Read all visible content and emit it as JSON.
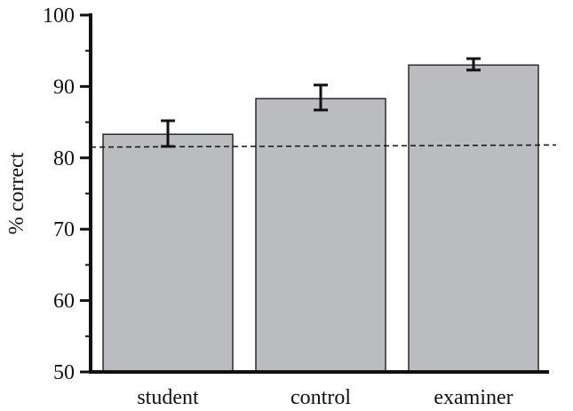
{
  "chart_data": {
    "type": "bar",
    "title": "",
    "xlabel": "",
    "ylabel": "% correct",
    "ylim": [
      50,
      100
    ],
    "yticks": [
      50,
      60,
      70,
      80,
      90,
      100
    ],
    "yticks_minor": [
      55,
      65,
      75,
      85,
      95
    ],
    "categories": [
      "student",
      "control",
      "examiner"
    ],
    "values": [
      83.3,
      88.3,
      93.0
    ],
    "error_low": [
      81.6,
      86.7,
      92.3
    ],
    "error_high": [
      85.2,
      90.2,
      93.9
    ],
    "reference_line": {
      "y_start": 81.5,
      "y_end": 81.8,
      "style": "dashed"
    },
    "grid": false,
    "legend": "none",
    "colors": {
      "bar_fill": "#bbbcc0",
      "bar_stroke": "#2a2a2a",
      "axis": "#111111",
      "text": "#111111"
    }
  }
}
